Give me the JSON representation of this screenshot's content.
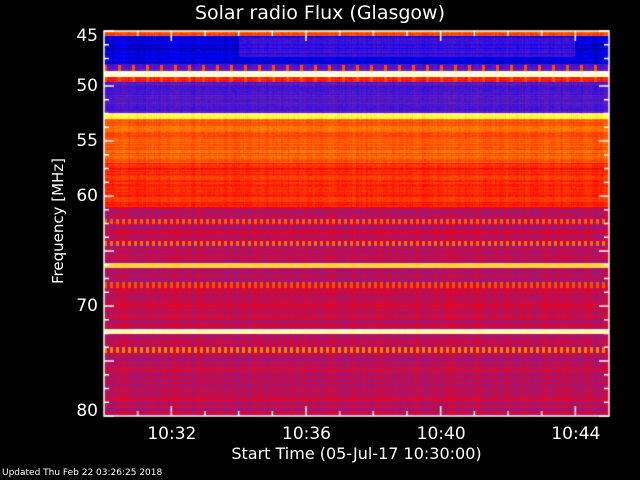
{
  "chart_data": {
    "type": "heatmap",
    "title": "Solar radio Flux (Glasgow)",
    "xlabel": "Start Time (05-Jul-17 10:30:00)",
    "ylabel": "Frequency [MHz]",
    "xlim": [
      "10:30",
      "10:45"
    ],
    "ylim": [
      45,
      80
    ],
    "y_inverted": true,
    "x_ticks": [
      "10:32",
      "10:36",
      "10:40",
      "10:44"
    ],
    "y_ticks": [
      45,
      50,
      55,
      60,
      70,
      80
    ],
    "colormap": [
      "#000000",
      "#0000ff",
      "#7020b0",
      "#ff0000",
      "#ff8000",
      "#ffff40",
      "#ffffff"
    ],
    "bands": [
      {
        "from": 45.0,
        "to": 45.5,
        "level": 0.6
      },
      {
        "from": 45.5,
        "to": 48.0,
        "level": 0.14
      },
      {
        "from": 48.0,
        "to": 48.6,
        "level": 0.3
      },
      {
        "from": 48.6,
        "to": 49.2,
        "level": 0.97
      },
      {
        "from": 49.2,
        "to": 49.6,
        "level": 0.55
      },
      {
        "from": 49.6,
        "to": 52.5,
        "level": 0.28
      },
      {
        "from": 52.5,
        "to": 53.0,
        "level": 0.85
      },
      {
        "from": 53.0,
        "to": 57.0,
        "level": 0.62
      },
      {
        "from": 57.0,
        "to": 61.0,
        "level": 0.55
      },
      {
        "from": 61.0,
        "to": 80.0,
        "level": 0.42
      }
    ],
    "lines": [
      {
        "freq": 62.3,
        "level": 0.62,
        "dotted": true
      },
      {
        "freq": 64.3,
        "level": 0.64,
        "dotted": true
      },
      {
        "freq": 66.3,
        "level": 0.78,
        "dotted": false
      },
      {
        "freq": 68.1,
        "level": 0.6,
        "dotted": true
      },
      {
        "freq": 72.3,
        "level": 0.93,
        "dotted": false
      },
      {
        "freq": 74.0,
        "level": 0.66,
        "dotted": true
      }
    ]
  },
  "footer": {
    "updated": "Updated Thu Feb 22 03:26:25 2018"
  }
}
